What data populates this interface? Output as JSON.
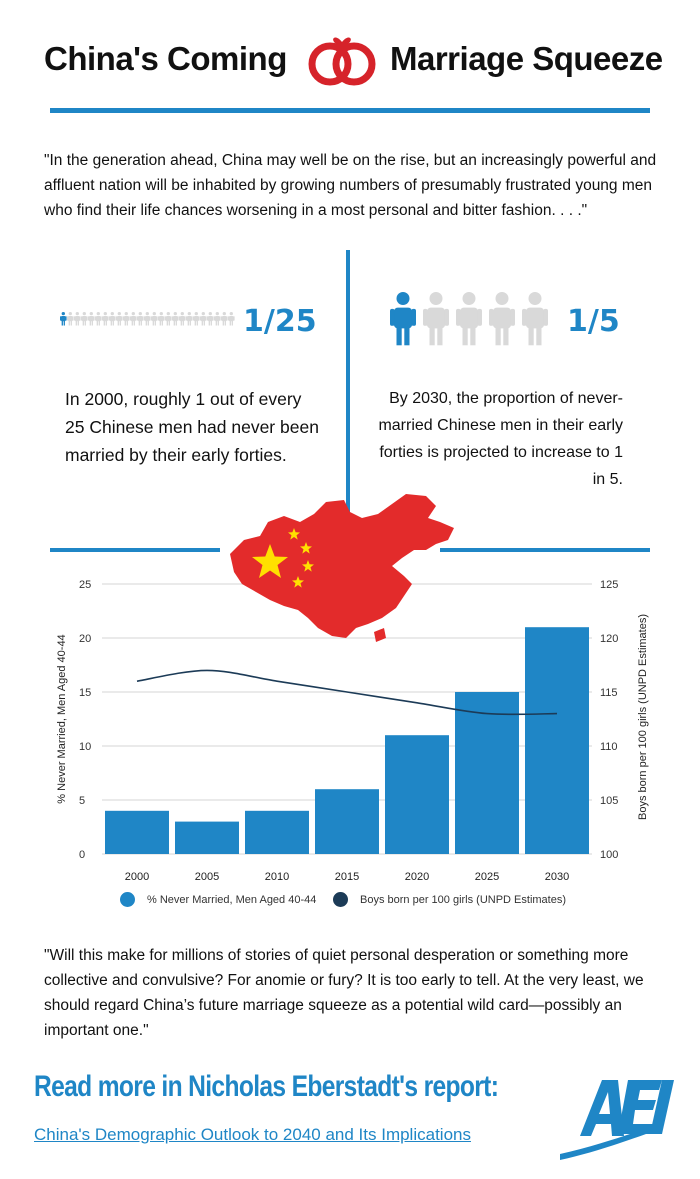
{
  "title": {
    "left": "China's Coming",
    "right": "Marriage Squeeze"
  },
  "quote_top": "\"In the generation ahead, China may well be on the rise, but an increasingly powerful and affluent nation will be inhabited by growing numbers of presumably frustrated young men who find their life chances worsening in a most personal and bitter fashion. . . .\"",
  "stat_left": {
    "ratio": "1/25",
    "people_total": 25,
    "people_highlighted": 1,
    "text": "In 2000, roughly 1 out of every 25 Chinese men had never been married by their early forties."
  },
  "stat_right": {
    "ratio": "1/5",
    "people_total": 5,
    "people_highlighted": 1,
    "text": "By 2030, the proportion of never-married Chinese men in their early forties is projected to increase to 1 in 5."
  },
  "colors": {
    "accent": "#1f86c6",
    "bar": "#1f86c6",
    "line": "#1c3b57",
    "grey_person": "#d9d9d9",
    "map_red": "#e32b2b",
    "star_yellow": "#ffe000",
    "rings": "#d6232a"
  },
  "icons": {
    "rings": "wedding-rings-icon",
    "person": "person-icon",
    "map": "china-map-icon",
    "logo": "aei-logo-icon"
  },
  "chart_data": {
    "type": "bar",
    "categories": [
      "2000",
      "2005",
      "2010",
      "2015",
      "2020",
      "2025",
      "2030"
    ],
    "series": [
      {
        "name": "% Never Married, Men Aged 40-44",
        "type": "bar",
        "axis": "left",
        "values": [
          4,
          3,
          4,
          6,
          11,
          15,
          21
        ]
      },
      {
        "name": "Boys born per 100 girls (UNPD Estimates)",
        "type": "line",
        "axis": "right",
        "values": [
          116,
          117,
          116,
          115,
          114,
          113,
          113
        ]
      }
    ],
    "ylabel": "% Never Married, Men Aged 40-44",
    "ylim": [
      0,
      25
    ],
    "yticks": [
      "0",
      "5",
      "10",
      "15",
      "20",
      "25"
    ],
    "y2label": "Boys born per 100 girls (UNPD Estimates)",
    "y2lim": [
      100,
      125
    ],
    "y2ticks": [
      "100",
      "105",
      "110",
      "115",
      "120",
      "125"
    ],
    "grid": true,
    "legend": "bottom"
  },
  "quote_bottom": "\"Will this make for millions of stories of quiet personal desperation or something more collective and convulsive? For anomie or fury? It is too early to tell. At the very least, we should regard China’s future marriage squeeze as a potential wild card—possibly an important one.\"",
  "readmore": "Read more in Nicholas Eberstadt's report:",
  "report_link": "China's Demographic Outlook to 2040 and Its Implications",
  "logo_text": "AEI"
}
